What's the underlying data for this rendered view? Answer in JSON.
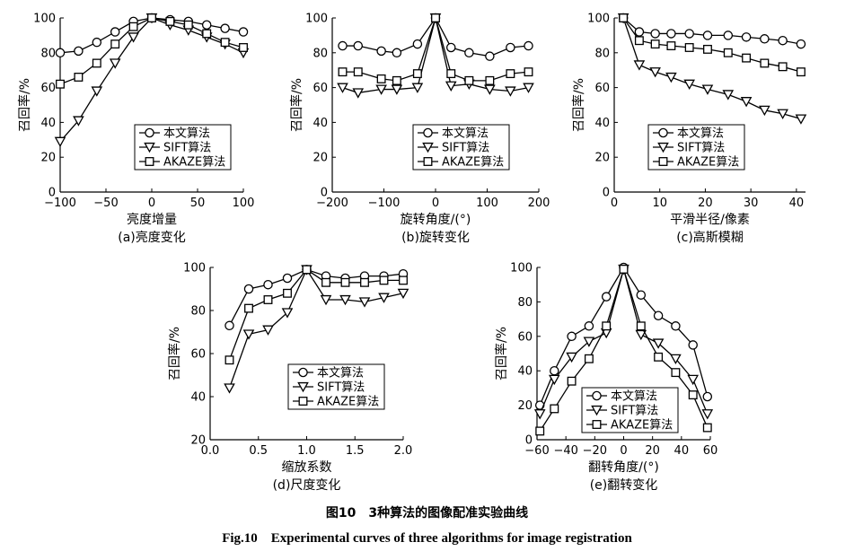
{
  "figure": {
    "caption_cn": "图10　3种算法的图像配准实验曲线",
    "caption_en": "Fig.10　Experimental curves of three algorithms for image registration"
  },
  "legend": [
    "本文算法",
    "SIFT算法",
    "AKAZE算法"
  ],
  "chart_data": [
    {
      "type": "line",
      "subcaption": "(a)亮度变化",
      "xlabel": "亮度增量",
      "ylabel": "召回率/%",
      "xlim": [
        -100,
        100
      ],
      "ylim": [
        0,
        100
      ],
      "xticks": [
        -100,
        -50,
        0,
        50,
        100
      ],
      "xtick_labels": [
        "−100",
        "−50",
        "0",
        "50",
        "100"
      ],
      "yticks": [
        0,
        20,
        40,
        60,
        80,
        100
      ],
      "legend_position": "bottom",
      "x": [
        -100,
        -80,
        -60,
        -40,
        -20,
        0,
        20,
        40,
        60,
        80,
        100
      ],
      "series": [
        {
          "name": "本文算法",
          "marker": "circle",
          "values": [
            80,
            81,
            86,
            92,
            98,
            100,
            99,
            98,
            96,
            94,
            92
          ]
        },
        {
          "name": "SIFT算法",
          "marker": "triangle",
          "values": [
            29,
            41,
            58,
            74,
            89,
            100,
            96,
            93,
            89,
            85,
            80
          ]
        },
        {
          "name": "AKAZE算法",
          "marker": "square",
          "values": [
            62,
            66,
            74,
            85,
            95,
            100,
            98,
            96,
            91,
            86,
            83
          ]
        }
      ]
    },
    {
      "type": "line",
      "subcaption": "(b)旋转变化",
      "xlabel": "旋转角度/(°)",
      "ylabel": "召回率/%",
      "xlim": [
        -200,
        200
      ],
      "ylim": [
        0,
        100
      ],
      "xticks": [
        -200,
        -100,
        0,
        100,
        200
      ],
      "xtick_labels": [
        "−200",
        "−100",
        "0",
        "100",
        "200"
      ],
      "yticks": [
        0,
        20,
        40,
        60,
        80,
        100
      ],
      "legend_position": "bottom",
      "x": [
        -180,
        -150,
        -105,
        -75,
        -35,
        0,
        30,
        65,
        105,
        145,
        180
      ],
      "series": [
        {
          "name": "本文算法",
          "marker": "circle",
          "values": [
            84,
            84,
            81,
            80,
            85,
            100,
            83,
            80,
            78,
            83,
            84
          ]
        },
        {
          "name": "SIFT算法",
          "marker": "triangle",
          "values": [
            60,
            57,
            59,
            59,
            60,
            100,
            61,
            62,
            59,
            58,
            60
          ]
        },
        {
          "name": "AKAZE算法",
          "marker": "square",
          "values": [
            69,
            69,
            65,
            64,
            68,
            100,
            68,
            64,
            64,
            68,
            69
          ]
        }
      ]
    },
    {
      "type": "line",
      "subcaption": "(c)高斯模糊",
      "xlabel": "平滑半径/像素",
      "ylabel": "召回率/%",
      "xlim": [
        0,
        42
      ],
      "ylim": [
        0,
        100
      ],
      "xticks": [
        0,
        10,
        20,
        30,
        40
      ],
      "xtick_labels": [
        "0",
        "10",
        "20",
        "30",
        "40"
      ],
      "yticks": [
        0,
        20,
        40,
        60,
        80,
        100
      ],
      "legend_position": "bottom",
      "x": [
        2,
        5.5,
        9,
        12.5,
        16.5,
        20.5,
        25,
        29,
        33,
        37,
        41
      ],
      "series": [
        {
          "name": "本文算法",
          "marker": "circle",
          "values": [
            100,
            92,
            91,
            91,
            91,
            90,
            90,
            89,
            88,
            87,
            85
          ]
        },
        {
          "name": "SIFT算法",
          "marker": "triangle",
          "values": [
            100,
            73,
            69,
            66,
            62,
            59,
            56,
            52,
            47,
            45,
            42
          ]
        },
        {
          "name": "AKAZE算法",
          "marker": "square",
          "values": [
            100,
            87,
            85,
            84,
            83,
            82,
            80,
            77,
            74,
            72,
            69
          ]
        }
      ]
    },
    {
      "type": "line",
      "subcaption": "(d)尺度变化",
      "xlabel": "缩放系数",
      "ylabel": "召回率/%",
      "xlim": [
        0,
        2
      ],
      "ylim": [
        20,
        100
      ],
      "xticks": [
        0,
        0.5,
        1,
        1.5,
        2
      ],
      "xtick_labels": [
        "0.0",
        "0.5",
        "1.0",
        "1.5",
        "2.0"
      ],
      "yticks": [
        20,
        40,
        60,
        80,
        100
      ],
      "legend_position": "bottom",
      "x": [
        0.2,
        0.4,
        0.6,
        0.8,
        1.0,
        1.2,
        1.4,
        1.6,
        1.8,
        2.0
      ],
      "series": [
        {
          "name": "本文算法",
          "marker": "circle",
          "values": [
            73,
            90,
            92,
            95,
            99,
            96,
            95,
            96,
            96,
            97
          ]
        },
        {
          "name": "SIFT算法",
          "marker": "triangle",
          "values": [
            44,
            69,
            71,
            79,
            99,
            85,
            85,
            84,
            86,
            88
          ]
        },
        {
          "name": "AKAZE算法",
          "marker": "square",
          "values": [
            57,
            81,
            85,
            88,
            99,
            93,
            93,
            93,
            94,
            94
          ]
        }
      ]
    },
    {
      "type": "line",
      "subcaption": "(e)翻转变化",
      "xlabel": "翻转角度/(°)",
      "ylabel": "召回率/%",
      "xlim": [
        -60,
        60
      ],
      "ylim": [
        0,
        100
      ],
      "xticks": [
        -60,
        -40,
        -20,
        0,
        20,
        40,
        60
      ],
      "xtick_labels": [
        "−60",
        "−40",
        "−20",
        "0",
        "20",
        "40",
        "60"
      ],
      "yticks": [
        0,
        20,
        40,
        60,
        80,
        100
      ],
      "legend_position": "bottom",
      "x": [
        -58,
        -48,
        -36,
        -24,
        -12,
        0,
        12,
        24,
        36,
        48,
        58
      ],
      "series": [
        {
          "name": "本文算法",
          "marker": "circle",
          "values": [
            20,
            40,
            60,
            66,
            83,
            100,
            84,
            72,
            66,
            55,
            25
          ]
        },
        {
          "name": "SIFT算法",
          "marker": "triangle",
          "values": [
            15,
            35,
            48,
            57,
            62,
            99,
            61,
            56,
            47,
            35,
            15
          ]
        },
        {
          "name": "AKAZE算法",
          "marker": "square",
          "values": [
            5,
            18,
            34,
            47,
            66,
            99,
            66,
            48,
            39,
            26,
            7
          ]
        }
      ]
    }
  ]
}
